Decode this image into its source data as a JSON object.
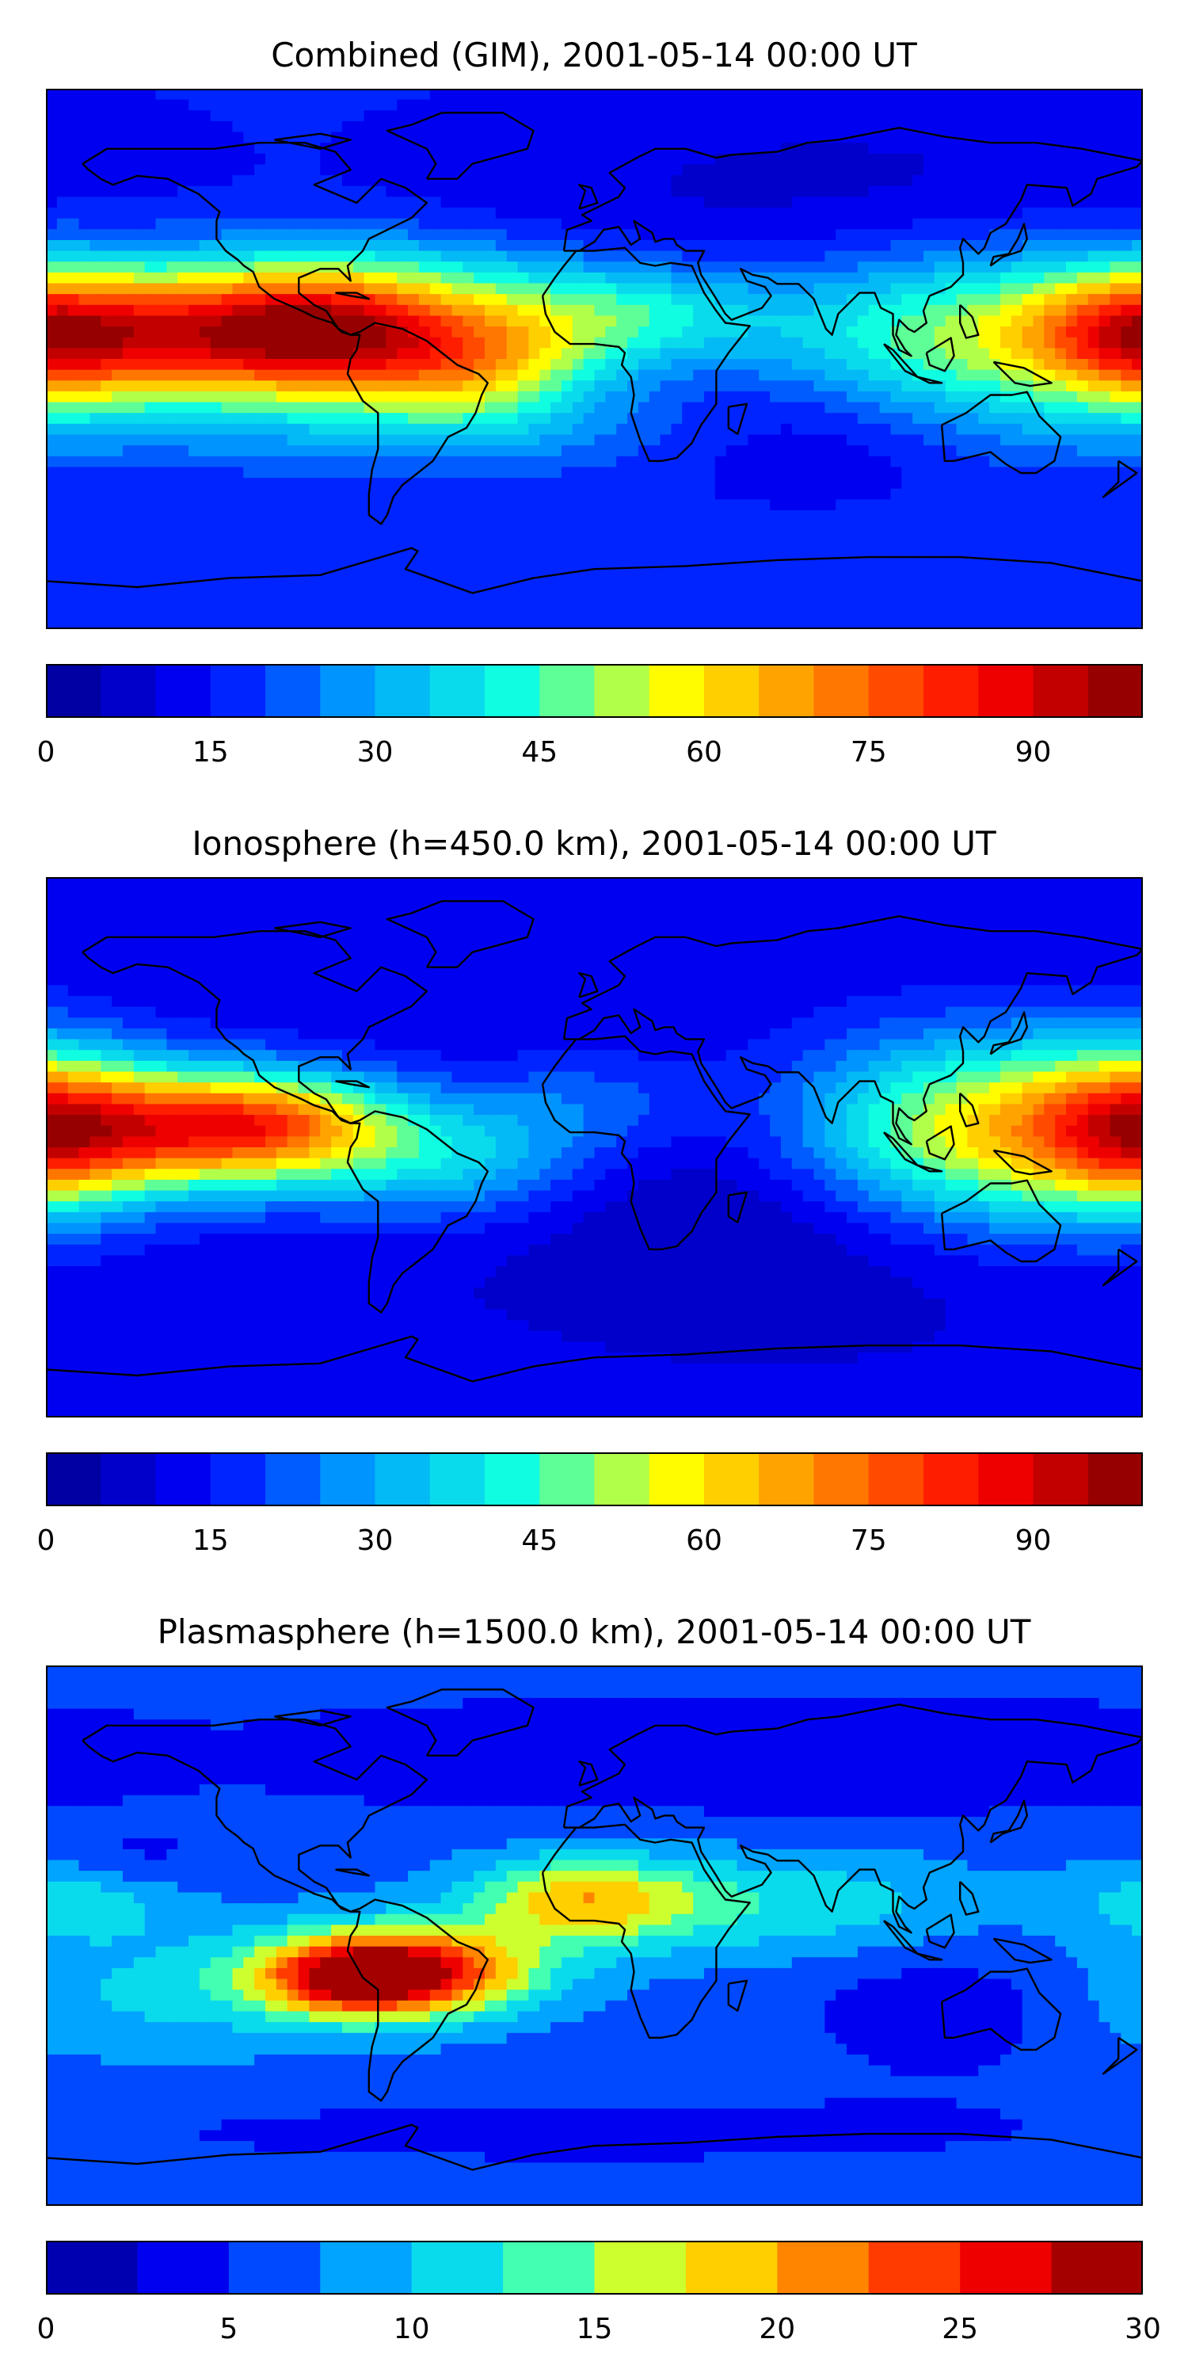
{
  "panels": [
    {
      "title": "Combined (GIM), 2001-05-14 00:00 UT",
      "colorbar": {
        "min": 0,
        "max": 100,
        "levels": 20,
        "ticks": [
          "0",
          "15",
          "30",
          "45",
          "60",
          "75",
          "90"
        ]
      }
    },
    {
      "title": "Ionosphere  (h=450.0 km), 2001-05-14 00:00 UT",
      "colorbar": {
        "min": 0,
        "max": 100,
        "levels": 20,
        "ticks": [
          "0",
          "15",
          "30",
          "45",
          "60",
          "75",
          "90"
        ]
      }
    },
    {
      "title": "Plasmasphere (h=1500.0 km), 2001-05-14 00:00 UT",
      "colorbar": {
        "min": 0,
        "max": 30,
        "levels": 12,
        "ticks": [
          "0",
          "5",
          "10",
          "15",
          "20",
          "25",
          "30"
        ]
      }
    }
  ],
  "colormap": "jet",
  "colors": {
    "jet": [
      "#00008f",
      "#0000ff",
      "#00a0ff",
      "#10ffe0",
      "#ffff00",
      "#ff8000",
      "#ff0000",
      "#800000"
    ]
  }
}
